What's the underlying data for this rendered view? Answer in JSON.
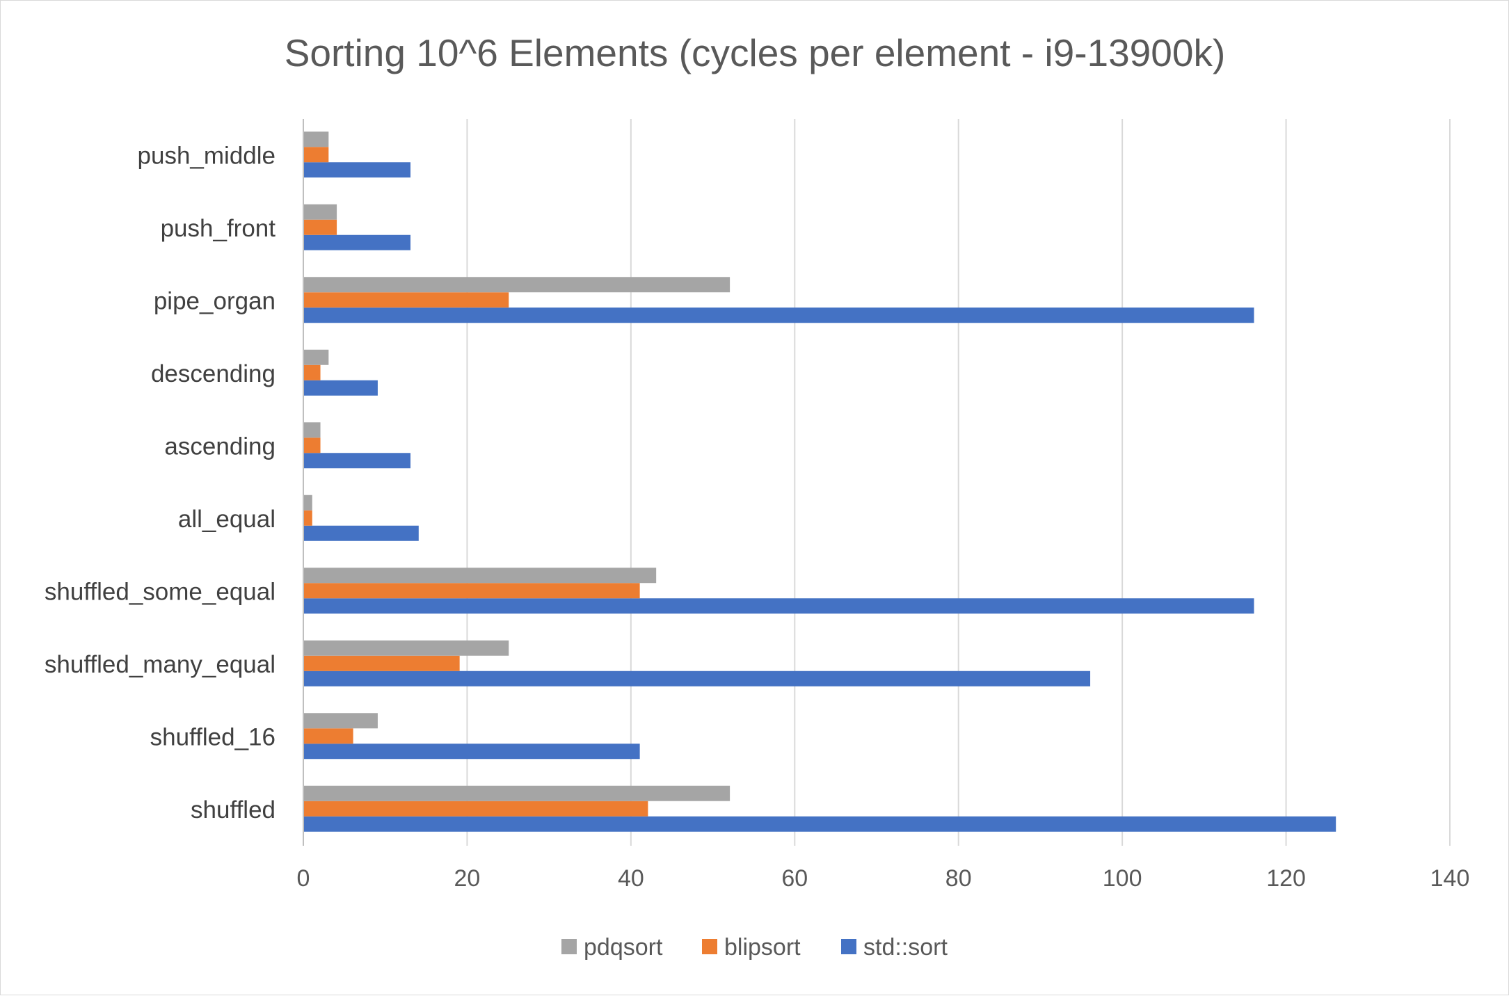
{
  "chart_data": {
    "type": "bar",
    "orientation": "horizontal",
    "title": "Sorting 10^6 Elements (cycles per element - i9-13900k)",
    "xlabel": "",
    "ylabel": "",
    "xlim": [
      0,
      140
    ],
    "x_ticks": [
      0,
      20,
      40,
      60,
      80,
      100,
      120,
      140
    ],
    "grid": true,
    "legend_position": "bottom",
    "categories": [
      "shuffled",
      "shuffled_16",
      "shuffled_many_equal",
      "shuffled_some_equal",
      "all_equal",
      "ascending",
      "descending",
      "pipe_organ",
      "push_front",
      "push_middle"
    ],
    "series": [
      {
        "name": "std::sort",
        "color": "#4472c4",
        "values": [
          126,
          41,
          96,
          116,
          14,
          13,
          9,
          116,
          13,
          13
        ]
      },
      {
        "name": "blipsort",
        "color": "#ed7d31",
        "values": [
          42,
          6,
          19,
          41,
          1,
          2,
          2,
          25,
          4,
          3
        ]
      },
      {
        "name": "pdqsort",
        "color": "#a5a5a5",
        "values": [
          52,
          9,
          25,
          43,
          1,
          2,
          3,
          52,
          4,
          3
        ]
      }
    ],
    "legend_order": [
      "pdqsort",
      "blipsort",
      "std::sort"
    ]
  }
}
